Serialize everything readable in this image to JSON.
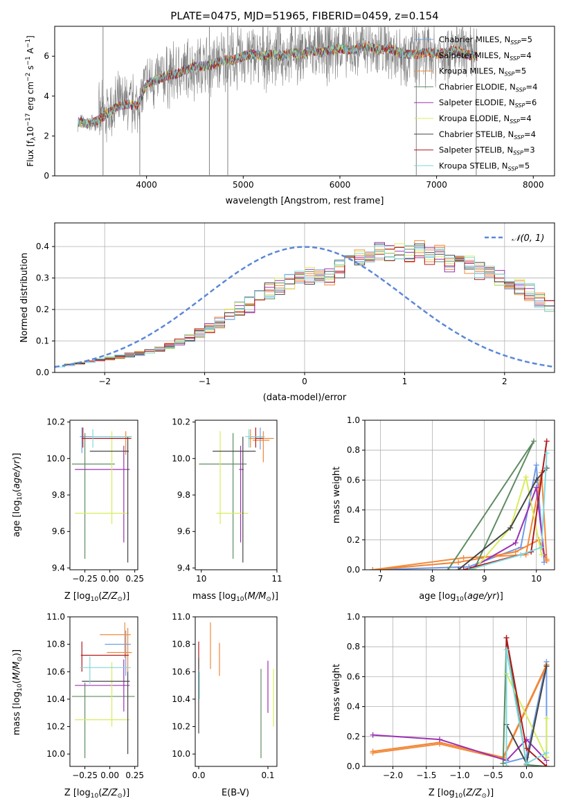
{
  "figure_title": "PLATE=0475, MJD=51965, FIBERID=0459, z=0.154",
  "models": [
    {
      "label": "Chabrier MILES",
      "nssp": 5,
      "color": "#6f9ce8"
    },
    {
      "label": "Salpeter MILES",
      "nssp": 4,
      "color": "#f58231"
    },
    {
      "label": "Kroupa MILES",
      "nssp": 5,
      "color": "#f08a3a"
    },
    {
      "label": "Chabrier ELODIE",
      "nssp": 4,
      "color": "#5e8b62"
    },
    {
      "label": "Salpeter ELODIE",
      "nssp": 6,
      "color": "#9b30b4"
    },
    {
      "label": "Kroupa ELODIE",
      "nssp": 4,
      "color": "#d7ec5a"
    },
    {
      "label": "Chabrier STELIB",
      "nssp": 4,
      "color": "#444444"
    },
    {
      "label": "Salpeter STELIB",
      "nssp": 3,
      "color": "#b0181c"
    },
    {
      "label": "Kroupa STELIB",
      "nssp": 5,
      "color": "#7fd8dc"
    }
  ],
  "chart_data": [
    {
      "id": "spectrum",
      "type": "line",
      "title": "PLATE=0475, MJD=51965, FIBERID=0459, z=0.154",
      "xlabel": "wavelength [Angstrom, rest frame]",
      "ylabel": "Flux [f_λ 10^-17 erg cm^-2 s^-1 A^-1]",
      "xlim": [
        3050,
        8220
      ],
      "ylim": [
        0,
        7.5
      ],
      "xticks": [
        4000,
        5000,
        6000,
        7000,
        8000
      ],
      "yticks": [
        0,
        2,
        4,
        6
      ],
      "grid": false,
      "legend": "right",
      "data_color": "#808080",
      "model_curve": {
        "x": [
          3290,
          3400,
          3500,
          3560,
          3620,
          3700,
          3800,
          3900,
          3950,
          4000,
          4100,
          4200,
          4300,
          4400,
          4500,
          4600,
          4700,
          4800,
          4900,
          5000,
          5100,
          5200,
          5300,
          5400,
          5500,
          5600,
          5700,
          5800,
          5900,
          6000,
          6100,
          6200,
          6300,
          6400,
          6500,
          6600,
          6700,
          6800,
          6900,
          7000,
          7100,
          7200,
          7300,
          7400
        ],
        "y": [
          2.7,
          2.6,
          2.8,
          3.0,
          3.2,
          3.5,
          3.6,
          3.5,
          4.0,
          4.6,
          4.8,
          5.0,
          5.1,
          5.3,
          5.5,
          5.5,
          5.6,
          5.8,
          5.8,
          6.0,
          6.1,
          6.0,
          6.1,
          6.0,
          6.2,
          6.1,
          6.3,
          6.2,
          6.3,
          6.4,
          6.3,
          6.4,
          6.5,
          6.3,
          6.4,
          6.2,
          6.1,
          6.1,
          6.2,
          6.1,
          6.2,
          6.3,
          6.1,
          6.0
        ]
      },
      "data_spikes": [
        {
          "x": 3550,
          "ylo": 0,
          "yhi": 7.5
        },
        {
          "x": 3930,
          "ylo": 0,
          "yhi": 3.5
        },
        {
          "x": 4650,
          "ylo": 0,
          "yhi": 7.5
        },
        {
          "x": 4840,
          "ylo": 0,
          "yhi": 7.5
        },
        {
          "x": 6790,
          "ylo": 0,
          "yhi": 6.5
        },
        {
          "x": 7410,
          "ylo": 0,
          "yhi": 6.8
        }
      ]
    },
    {
      "id": "residuals",
      "type": "step-histogram",
      "xlabel": "(data-model)/error",
      "ylabel": "Normed distribution",
      "xlim": [
        -2.5,
        2.5
      ],
      "ylim": [
        0,
        0.475
      ],
      "xticks": [
        -2,
        -1,
        0,
        1,
        2
      ],
      "yticks": [
        0.0,
        0.1,
        0.2,
        0.3,
        0.4
      ],
      "grid": true,
      "legend": "top-right",
      "reference_label": "𝒩(0, 1)",
      "reference_color": "#5b87d8",
      "bins_start": -2.5,
      "bin_width": 0.1,
      "base_counts": [
        0.02,
        0.025,
        0.03,
        0.035,
        0.04,
        0.045,
        0.05,
        0.055,
        0.06,
        0.065,
        0.075,
        0.085,
        0.095,
        0.11,
        0.125,
        0.14,
        0.16,
        0.18,
        0.205,
        0.215,
        0.235,
        0.255,
        0.275,
        0.29,
        0.3,
        0.31,
        0.305,
        0.3,
        0.33,
        0.35,
        0.37,
        0.375,
        0.385,
        0.38,
        0.39,
        0.38,
        0.39,
        0.37,
        0.375,
        0.345,
        0.36,
        0.34,
        0.32,
        0.31,
        0.295,
        0.28,
        0.27,
        0.255,
        0.23,
        0.21,
        0.185,
        0.165,
        0.14,
        0.12,
        0.1,
        0.085,
        0.07,
        0.06,
        0.05,
        0.045,
        0.04,
        0.035,
        0.03,
        0.028,
        0.025,
        0.022,
        0.02,
        0.02,
        0.02,
        0.02
      ]
    },
    {
      "id": "age_vs_Z",
      "type": "errorbar",
      "xlabel": "Z [log10(Z/Z⊙)]",
      "ylabel": "age [log10(age/yr)]",
      "xlim": [
        -0.4,
        0.28
      ],
      "ylim": [
        9.39,
        10.21
      ],
      "xticks": [
        -0.25,
        0.0,
        0.25
      ],
      "yticks": [
        9.4,
        9.6,
        9.8,
        10.0,
        10.2
      ],
      "points": [
        {
          "x": -0.28,
          "y": 10.12,
          "xlo": -0.3,
          "xhi": 0.22,
          "ylo": 10.03,
          "yhi": 10.17,
          "model": 0
        },
        {
          "x": 0.16,
          "y": 10.11,
          "xlo": -0.01,
          "xhi": 0.22,
          "ylo": 10.02,
          "yhi": 10.15,
          "model": 1
        },
        {
          "x": -0.25,
          "y": 9.97,
          "xlo": -0.38,
          "xhi": 0.05,
          "ylo": 9.45,
          "yhi": 10.14,
          "model": 3
        },
        {
          "x": 0.14,
          "y": 9.94,
          "xlo": -0.35,
          "xhi": 0.2,
          "ylo": 9.54,
          "yhi": 10.07,
          "model": 4
        },
        {
          "x": 0.02,
          "y": 9.7,
          "xlo": -0.35,
          "xhi": 0.19,
          "ylo": 9.64,
          "yhi": 10.15,
          "model": 5
        },
        {
          "x": 0.18,
          "y": 10.04,
          "xlo": -0.2,
          "xhi": 0.19,
          "ylo": 9.43,
          "yhi": 10.12,
          "model": 6
        },
        {
          "x": -0.27,
          "y": 10.11,
          "xlo": -0.28,
          "xhi": 0.21,
          "ylo": 10.06,
          "yhi": 10.17,
          "model": 7
        },
        {
          "x": -0.17,
          "y": 10.12,
          "xlo": -0.18,
          "xhi": 0.22,
          "ylo": 10.06,
          "yhi": 10.16,
          "model": 8
        }
      ]
    },
    {
      "id": "age_vs_mass",
      "type": "errorbar",
      "xlabel": "mass [log10(M/M⊙)]",
      "ylabel": "",
      "xlim": [
        9.92,
        11.0
      ],
      "ylim": [
        9.39,
        10.21
      ],
      "xticks": [
        10,
        11
      ],
      "yticks": [
        9.4,
        9.6,
        9.8,
        10.0,
        10.2
      ],
      "points": [
        {
          "x": 10.78,
          "y": 10.12,
          "xlo": 10.64,
          "xhi": 10.84,
          "ylo": 10.05,
          "yhi": 10.17,
          "model": 0
        },
        {
          "x": 10.82,
          "y": 10.1,
          "xlo": 10.68,
          "xhi": 10.9,
          "ylo": 9.98,
          "yhi": 10.15,
          "model": 1
        },
        {
          "x": 10.65,
          "y": 10.11,
          "xlo": 10.62,
          "xhi": 10.96,
          "ylo": 10.06,
          "yhi": 10.16,
          "model": 2
        },
        {
          "x": 10.42,
          "y": 9.97,
          "xlo": 9.97,
          "xhi": 10.6,
          "ylo": 9.45,
          "yhi": 10.14,
          "model": 3
        },
        {
          "x": 10.52,
          "y": 9.94,
          "xlo": 10.5,
          "xhi": 10.56,
          "ylo": 9.54,
          "yhi": 10.07,
          "model": 4
        },
        {
          "x": 10.25,
          "y": 9.7,
          "xlo": 10.2,
          "xhi": 10.62,
          "ylo": 9.64,
          "yhi": 10.15,
          "model": 5
        },
        {
          "x": 10.55,
          "y": 10.04,
          "xlo": 10.15,
          "xhi": 10.72,
          "ylo": 9.43,
          "yhi": 10.12,
          "model": 6
        },
        {
          "x": 10.72,
          "y": 10.11,
          "xlo": 10.72,
          "xhi": 10.82,
          "ylo": 10.06,
          "yhi": 10.17,
          "model": 7
        },
        {
          "x": 10.63,
          "y": 10.12,
          "xlo": 10.58,
          "xhi": 10.84,
          "ylo": 10.06,
          "yhi": 10.16,
          "model": 8
        }
      ]
    },
    {
      "id": "mass_weight_vs_age",
      "type": "line",
      "xlabel": "age [log10(age/yr)]",
      "ylabel": "mass weight",
      "xlim": [
        6.7,
        10.35
      ],
      "ylim": [
        0,
        1.0
      ],
      "xticks": [
        7,
        8,
        9,
        10
      ],
      "yticks": [
        0.0,
        0.2,
        0.4,
        0.6,
        0.8,
        1.0
      ],
      "grid": true,
      "series": [
        {
          "model": 0,
          "x": [
            6.85,
            8.7,
            9.7,
            10.0,
            10.15
          ],
          "y": [
            0.0,
            0.02,
            0.15,
            0.7,
            0.05
          ]
        },
        {
          "model": 1,
          "x": [
            6.85,
            8.5,
            9.6,
            10.05,
            10.2
          ],
          "y": [
            0.0,
            0.05,
            0.12,
            0.2,
            0.06
          ]
        },
        {
          "model": 2,
          "x": [
            6.85,
            8.6,
            9.8,
            10.1,
            10.2
          ],
          "y": [
            0.0,
            0.08,
            0.1,
            0.65,
            0.07
          ]
        },
        {
          "model": 3,
          "x": [
            8.3,
            9.95,
            8.8
          ],
          "y": [
            0.0,
            0.86,
            0.0
          ]
        },
        {
          "model": 4,
          "x": [
            8.7,
            9.6,
            10.0,
            10.15
          ],
          "y": [
            0.0,
            0.18,
            0.55,
            0.1
          ]
        },
        {
          "model": 5,
          "x": [
            8.8,
            9.5,
            9.8,
            10.1
          ],
          "y": [
            0.0,
            0.28,
            0.62,
            0.1
          ]
        },
        {
          "model": 6,
          "x": [
            8.5,
            9.5,
            10.0,
            10.2
          ],
          "y": [
            0.0,
            0.28,
            0.6,
            0.68
          ]
        },
        {
          "model": 7,
          "x": [
            8.6,
            9.9,
            10.2
          ],
          "y": [
            0.0,
            0.12,
            0.86
          ]
        },
        {
          "model": 8,
          "x": [
            8.7,
            9.7,
            10.1,
            10.2
          ],
          "y": [
            0.0,
            0.1,
            0.15,
            0.78
          ]
        }
      ]
    },
    {
      "id": "mass_vs_Z",
      "type": "errorbar",
      "xlabel": "Z [log10(Z/Z⊙)]",
      "ylabel": "mass [log10(M/M⊙)]",
      "xlim": [
        -0.4,
        0.28
      ],
      "ylim": [
        9.91,
        11.0
      ],
      "xticks": [
        -0.25,
        0.0,
        0.25
      ],
      "yticks": [
        10.0,
        10.2,
        10.4,
        10.6,
        10.8,
        11.0
      ],
      "points": [
        {
          "x": 0.16,
          "y": 10.8,
          "xlo": -0.05,
          "xhi": 0.21,
          "ylo": 10.57,
          "yhi": 10.9,
          "model": 0
        },
        {
          "x": 0.18,
          "y": 10.74,
          "xlo": -0.03,
          "xhi": 0.22,
          "ylo": 10.6,
          "yhi": 10.92,
          "model": 1
        },
        {
          "x": 0.15,
          "y": 10.87,
          "xlo": -0.1,
          "xhi": 0.21,
          "ylo": 10.7,
          "yhi": 10.96,
          "model": 2
        },
        {
          "x": -0.25,
          "y": 10.42,
          "xlo": -0.38,
          "xhi": 0.25,
          "ylo": 9.97,
          "yhi": 10.52,
          "model": 3
        },
        {
          "x": 0.14,
          "y": 10.5,
          "xlo": -0.35,
          "xhi": 0.2,
          "ylo": 10.31,
          "yhi": 10.69,
          "model": 4
        },
        {
          "x": 0.02,
          "y": 10.25,
          "xlo": -0.35,
          "xhi": 0.2,
          "ylo": 10.2,
          "yhi": 10.67,
          "model": 5
        },
        {
          "x": 0.18,
          "y": 10.53,
          "xlo": -0.28,
          "xhi": 0.2,
          "ylo": 10.0,
          "yhi": 10.6,
          "model": 6
        },
        {
          "x": -0.28,
          "y": 10.72,
          "xlo": -0.29,
          "xhi": 0.19,
          "ylo": 10.6,
          "yhi": 10.82,
          "model": 7
        },
        {
          "x": -0.2,
          "y": 10.63,
          "xlo": -0.3,
          "xhi": 0.21,
          "ylo": 10.51,
          "yhi": 10.71,
          "model": 8
        }
      ]
    },
    {
      "id": "mass_vs_EBV",
      "type": "errorbar",
      "xlabel": "E(B-V)",
      "ylabel": "",
      "xlim": [
        -0.005,
        0.113
      ],
      "ylim": [
        9.91,
        11.0
      ],
      "xticks": [
        0.0,
        0.1
      ],
      "yticks": [
        10.0,
        10.2,
        10.4,
        10.6,
        10.8,
        11.0
      ],
      "points": [
        {
          "x": 0.0,
          "y": 10.72,
          "ylo": 10.62,
          "yhi": 10.82,
          "model": 7
        },
        {
          "x": 0.0,
          "y": 10.53,
          "ylo": 10.15,
          "yhi": 10.7,
          "model": 6
        },
        {
          "x": 0.001,
          "y": 10.5,
          "ylo": 10.4,
          "yhi": 10.6,
          "model": 8
        },
        {
          "x": 0.017,
          "y": 10.8,
          "ylo": 10.62,
          "yhi": 10.96,
          "model": 2
        },
        {
          "x": 0.03,
          "y": 10.7,
          "ylo": 10.57,
          "yhi": 10.81,
          "model": 1
        },
        {
          "x": 0.09,
          "y": 10.4,
          "ylo": 9.97,
          "yhi": 10.62,
          "model": 3
        },
        {
          "x": 0.1,
          "y": 10.5,
          "ylo": 10.3,
          "yhi": 10.68,
          "model": 4
        },
        {
          "x": 0.108,
          "y": 10.4,
          "ylo": 10.2,
          "yhi": 10.62,
          "model": 5
        }
      ]
    },
    {
      "id": "mass_weight_vs_Z",
      "type": "line",
      "xlabel": "Z [log10(Z/Z⊙)]",
      "ylabel": "mass weight",
      "xlim": [
        -2.42,
        0.42
      ],
      "ylim": [
        0,
        1.0
      ],
      "xticks": [
        -2.0,
        -1.5,
        -1.0,
        -0.5,
        0.0
      ],
      "yticks": [
        0.0,
        0.2,
        0.4,
        0.6,
        0.8,
        1.0
      ],
      "grid": true,
      "series": [
        {
          "model": 0,
          "x": [
            -0.35,
            0.0,
            0.3,
            0.3
          ],
          "y": [
            0.02,
            0.06,
            0.7,
            0.06
          ]
        },
        {
          "model": 1,
          "x": [
            -2.3,
            -1.3,
            -0.35,
            0.3
          ],
          "y": [
            0.1,
            0.16,
            0.06,
            0.68
          ]
        },
        {
          "model": 2,
          "x": [
            -2.3,
            -1.3,
            -0.35,
            0.3
          ],
          "y": [
            0.09,
            0.15,
            0.05,
            0.67
          ]
        },
        {
          "model": 3,
          "x": [
            -0.35,
            -0.3,
            0.0,
            0.3
          ],
          "y": [
            0.02,
            0.86,
            0.01,
            0.0
          ]
        },
        {
          "model": 4,
          "x": [
            -2.3,
            -1.3,
            -0.3,
            0.0,
            0.3
          ],
          "y": [
            0.21,
            0.18,
            0.04,
            0.18,
            0.04
          ]
        },
        {
          "model": 5,
          "x": [
            -0.3,
            -0.3,
            0.3,
            0.3
          ],
          "y": [
            0.0,
            0.62,
            0.06,
            0.32
          ]
        },
        {
          "model": 6,
          "x": [
            -0.3,
            -0.3,
            0.0,
            0.3
          ],
          "y": [
            0.0,
            0.28,
            0.02,
            0.67
          ]
        },
        {
          "model": 7,
          "x": [
            -0.3,
            -0.3,
            0.0,
            0.3
          ],
          "y": [
            0.0,
            0.86,
            0.12,
            0.0
          ]
        },
        {
          "model": 8,
          "x": [
            -0.3,
            -0.3,
            0.0,
            0.3
          ],
          "y": [
            0.0,
            0.78,
            0.02,
            0.09
          ]
        }
      ]
    }
  ]
}
